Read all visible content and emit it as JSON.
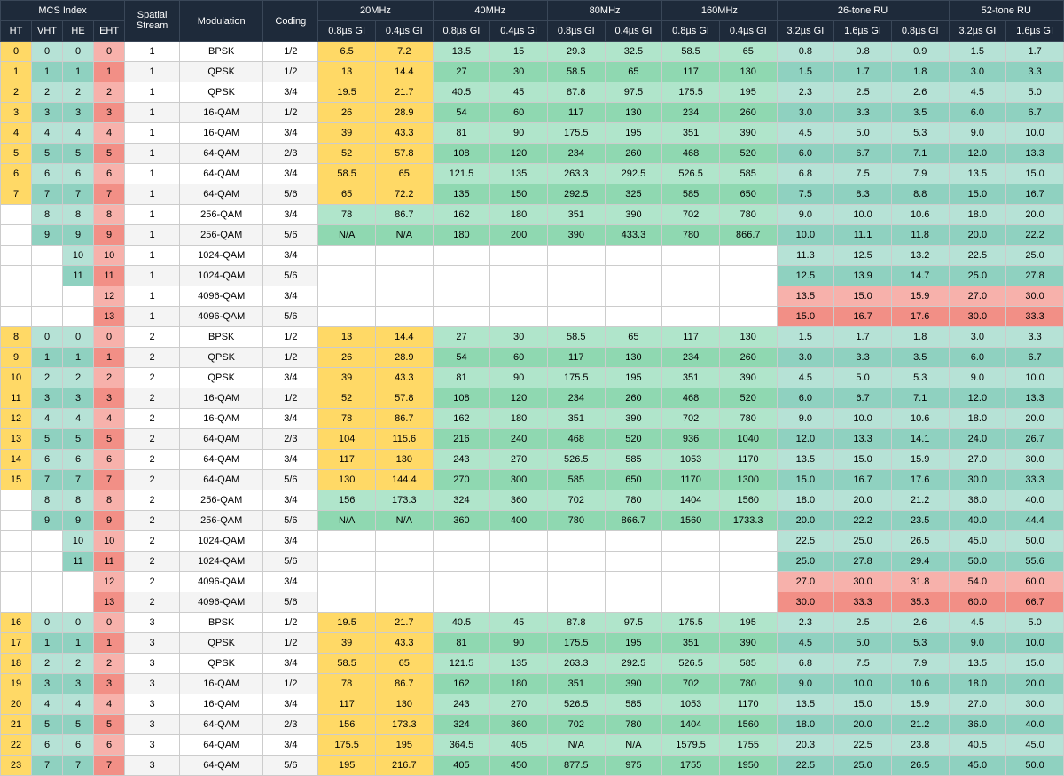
{
  "headers": {
    "group": [
      "MCS Index",
      "Spatial Stream",
      "Modulation",
      "Coding",
      "20MHz",
      "40MHz",
      "80MHz",
      "160MHz",
      "26-tone RU",
      "52-tone RU"
    ],
    "sub": [
      "HT",
      "VHT",
      "HE",
      "EHT",
      "0.8µs GI",
      "0.4µs GI",
      "0.8µs GI",
      "0.4µs GI",
      "0.8µs GI",
      "0.4µs GI",
      "0.8µs GI",
      "0.4µs GI",
      "3.2µs GI",
      "1.6µs GI",
      "0.8µs GI",
      "3.2µs GI",
      "1.6µs GI"
    ]
  },
  "gi_cols": 17,
  "blocks": [
    {
      "ss": 1,
      "rows": [
        {
          "ht": "0",
          "v": "0",
          "he": "0",
          "e": "0",
          "mod": "BPSK",
          "cod": "1/2",
          "r": [
            "6.5",
            "7.2",
            "13.5",
            "15",
            "29.3",
            "32.5",
            "58.5",
            "65",
            "0.8",
            "0.8",
            "0.9",
            "1.5",
            "1.7"
          ]
        },
        {
          "ht": "1",
          "v": "1",
          "he": "1",
          "e": "1",
          "mod": "QPSK",
          "cod": "1/2",
          "r": [
            "13",
            "14.4",
            "27",
            "30",
            "58.5",
            "65",
            "117",
            "130",
            "1.5",
            "1.7",
            "1.8",
            "3.0",
            "3.3"
          ]
        },
        {
          "ht": "2",
          "v": "2",
          "he": "2",
          "e": "2",
          "mod": "QPSK",
          "cod": "3/4",
          "r": [
            "19.5",
            "21.7",
            "40.5",
            "45",
            "87.8",
            "97.5",
            "175.5",
            "195",
            "2.3",
            "2.5",
            "2.6",
            "4.5",
            "5.0"
          ]
        },
        {
          "ht": "3",
          "v": "3",
          "he": "3",
          "e": "3",
          "mod": "16-QAM",
          "cod": "1/2",
          "r": [
            "26",
            "28.9",
            "54",
            "60",
            "117",
            "130",
            "234",
            "260",
            "3.0",
            "3.3",
            "3.5",
            "6.0",
            "6.7"
          ]
        },
        {
          "ht": "4",
          "v": "4",
          "he": "4",
          "e": "4",
          "mod": "16-QAM",
          "cod": "3/4",
          "r": [
            "39",
            "43.3",
            "81",
            "90",
            "175.5",
            "195",
            "351",
            "390",
            "4.5",
            "5.0",
            "5.3",
            "9.0",
            "10.0"
          ]
        },
        {
          "ht": "5",
          "v": "5",
          "he": "5",
          "e": "5",
          "mod": "64-QAM",
          "cod": "2/3",
          "r": [
            "52",
            "57.8",
            "108",
            "120",
            "234",
            "260",
            "468",
            "520",
            "6.0",
            "6.7",
            "7.1",
            "12.0",
            "13.3"
          ]
        },
        {
          "ht": "6",
          "v": "6",
          "he": "6",
          "e": "6",
          "mod": "64-QAM",
          "cod": "3/4",
          "r": [
            "58.5",
            "65",
            "121.5",
            "135",
            "263.3",
            "292.5",
            "526.5",
            "585",
            "6.8",
            "7.5",
            "7.9",
            "13.5",
            "15.0"
          ]
        },
        {
          "ht": "7",
          "v": "7",
          "he": "7",
          "e": "7",
          "mod": "64-QAM",
          "cod": "5/6",
          "r": [
            "65",
            "72.2",
            "135",
            "150",
            "292.5",
            "325",
            "585",
            "650",
            "7.5",
            "8.3",
            "8.8",
            "15.0",
            "16.7"
          ]
        },
        {
          "ht": "",
          "v": "8",
          "he": "8",
          "e": "8",
          "mod": "256-QAM",
          "cod": "3/4",
          "r": [
            "78",
            "86.7",
            "162",
            "180",
            "351",
            "390",
            "702",
            "780",
            "9.0",
            "10.0",
            "10.6",
            "18.0",
            "20.0"
          ]
        },
        {
          "ht": "",
          "v": "9",
          "he": "9",
          "e": "9",
          "mod": "256-QAM",
          "cod": "5/6",
          "r": [
            "N/A",
            "N/A",
            "180",
            "200",
            "390",
            "433.3",
            "780",
            "866.7",
            "10.0",
            "11.1",
            "11.8",
            "20.0",
            "22.2"
          ]
        },
        {
          "ht": "",
          "v": "",
          "he": "10",
          "e": "10",
          "mod": "1024-QAM",
          "cod": "3/4",
          "r": [
            "",
            "",
            "",
            "",
            "",
            "",
            "",
            "",
            "11.3",
            "12.5",
            "13.2",
            "22.5",
            "25.0"
          ]
        },
        {
          "ht": "",
          "v": "",
          "he": "11",
          "e": "11",
          "mod": "1024-QAM",
          "cod": "5/6",
          "r": [
            "",
            "",
            "",
            "",
            "",
            "",
            "",
            "",
            "12.5",
            "13.9",
            "14.7",
            "25.0",
            "27.8"
          ]
        },
        {
          "ht": "",
          "v": "",
          "he": "",
          "e": "12",
          "mod": "4096-QAM",
          "cod": "3/4",
          "r": [
            "",
            "",
            "",
            "",
            "",
            "",
            "",
            "",
            "13.5",
            "15.0",
            "15.9",
            "27.0",
            "30.0"
          ]
        },
        {
          "ht": "",
          "v": "",
          "he": "",
          "e": "13",
          "mod": "4096-QAM",
          "cod": "5/6",
          "r": [
            "",
            "",
            "",
            "",
            "",
            "",
            "",
            "",
            "15.0",
            "16.7",
            "17.6",
            "30.0",
            "33.3"
          ]
        }
      ]
    },
    {
      "ss": 2,
      "rows": [
        {
          "ht": "8",
          "v": "0",
          "he": "0",
          "e": "0",
          "mod": "BPSK",
          "cod": "1/2",
          "r": [
            "13",
            "14.4",
            "27",
            "30",
            "58.5",
            "65",
            "117",
            "130",
            "1.5",
            "1.7",
            "1.8",
            "3.0",
            "3.3"
          ]
        },
        {
          "ht": "9",
          "v": "1",
          "he": "1",
          "e": "1",
          "mod": "QPSK",
          "cod": "1/2",
          "r": [
            "26",
            "28.9",
            "54",
            "60",
            "117",
            "130",
            "234",
            "260",
            "3.0",
            "3.3",
            "3.5",
            "6.0",
            "6.7"
          ]
        },
        {
          "ht": "10",
          "v": "2",
          "he": "2",
          "e": "2",
          "mod": "QPSK",
          "cod": "3/4",
          "r": [
            "39",
            "43.3",
            "81",
            "90",
            "175.5",
            "195",
            "351",
            "390",
            "4.5",
            "5.0",
            "5.3",
            "9.0",
            "10.0"
          ]
        },
        {
          "ht": "11",
          "v": "3",
          "he": "3",
          "e": "3",
          "mod": "16-QAM",
          "cod": "1/2",
          "r": [
            "52",
            "57.8",
            "108",
            "120",
            "234",
            "260",
            "468",
            "520",
            "6.0",
            "6.7",
            "7.1",
            "12.0",
            "13.3"
          ]
        },
        {
          "ht": "12",
          "v": "4",
          "he": "4",
          "e": "4",
          "mod": "16-QAM",
          "cod": "3/4",
          "r": [
            "78",
            "86.7",
            "162",
            "180",
            "351",
            "390",
            "702",
            "780",
            "9.0",
            "10.0",
            "10.6",
            "18.0",
            "20.0"
          ]
        },
        {
          "ht": "13",
          "v": "5",
          "he": "5",
          "e": "5",
          "mod": "64-QAM",
          "cod": "2/3",
          "r": [
            "104",
            "115.6",
            "216",
            "240",
            "468",
            "520",
            "936",
            "1040",
            "12.0",
            "13.3",
            "14.1",
            "24.0",
            "26.7"
          ]
        },
        {
          "ht": "14",
          "v": "6",
          "he": "6",
          "e": "6",
          "mod": "64-QAM",
          "cod": "3/4",
          "r": [
            "117",
            "130",
            "243",
            "270",
            "526.5",
            "585",
            "1053",
            "1170",
            "13.5",
            "15.0",
            "15.9",
            "27.0",
            "30.0"
          ]
        },
        {
          "ht": "15",
          "v": "7",
          "he": "7",
          "e": "7",
          "mod": "64-QAM",
          "cod": "5/6",
          "r": [
            "130",
            "144.4",
            "270",
            "300",
            "585",
            "650",
            "1170",
            "1300",
            "15.0",
            "16.7",
            "17.6",
            "30.0",
            "33.3"
          ]
        },
        {
          "ht": "",
          "v": "8",
          "he": "8",
          "e": "8",
          "mod": "256-QAM",
          "cod": "3/4",
          "r": [
            "156",
            "173.3",
            "324",
            "360",
            "702",
            "780",
            "1404",
            "1560",
            "18.0",
            "20.0",
            "21.2",
            "36.0",
            "40.0"
          ]
        },
        {
          "ht": "",
          "v": "9",
          "he": "9",
          "e": "9",
          "mod": "256-QAM",
          "cod": "5/6",
          "r": [
            "N/A",
            "N/A",
            "360",
            "400",
            "780",
            "866.7",
            "1560",
            "1733.3",
            "20.0",
            "22.2",
            "23.5",
            "40.0",
            "44.4"
          ]
        },
        {
          "ht": "",
          "v": "",
          "he": "10",
          "e": "10",
          "mod": "1024-QAM",
          "cod": "3/4",
          "r": [
            "",
            "",
            "",
            "",
            "",
            "",
            "",
            "",
            "22.5",
            "25.0",
            "26.5",
            "45.0",
            "50.0"
          ]
        },
        {
          "ht": "",
          "v": "",
          "he": "11",
          "e": "11",
          "mod": "1024-QAM",
          "cod": "5/6",
          "r": [
            "",
            "",
            "",
            "",
            "",
            "",
            "",
            "",
            "25.0",
            "27.8",
            "29.4",
            "50.0",
            "55.6"
          ]
        },
        {
          "ht": "",
          "v": "",
          "he": "",
          "e": "12",
          "mod": "4096-QAM",
          "cod": "3/4",
          "r": [
            "",
            "",
            "",
            "",
            "",
            "",
            "",
            "",
            "27.0",
            "30.0",
            "31.8",
            "54.0",
            "60.0"
          ]
        },
        {
          "ht": "",
          "v": "",
          "he": "",
          "e": "13",
          "mod": "4096-QAM",
          "cod": "5/6",
          "r": [
            "",
            "",
            "",
            "",
            "",
            "",
            "",
            "",
            "30.0",
            "33.3",
            "35.3",
            "60.0",
            "66.7"
          ]
        }
      ]
    },
    {
      "ss": 3,
      "rows": [
        {
          "ht": "16",
          "v": "0",
          "he": "0",
          "e": "0",
          "mod": "BPSK",
          "cod": "1/2",
          "r": [
            "19.5",
            "21.7",
            "40.5",
            "45",
            "87.8",
            "97.5",
            "175.5",
            "195",
            "2.3",
            "2.5",
            "2.6",
            "4.5",
            "5.0"
          ]
        },
        {
          "ht": "17",
          "v": "1",
          "he": "1",
          "e": "1",
          "mod": "QPSK",
          "cod": "1/2",
          "r": [
            "39",
            "43.3",
            "81",
            "90",
            "175.5",
            "195",
            "351",
            "390",
            "4.5",
            "5.0",
            "5.3",
            "9.0",
            "10.0"
          ]
        },
        {
          "ht": "18",
          "v": "2",
          "he": "2",
          "e": "2",
          "mod": "QPSK",
          "cod": "3/4",
          "r": [
            "58.5",
            "65",
            "121.5",
            "135",
            "263.3",
            "292.5",
            "526.5",
            "585",
            "6.8",
            "7.5",
            "7.9",
            "13.5",
            "15.0"
          ]
        },
        {
          "ht": "19",
          "v": "3",
          "he": "3",
          "e": "3",
          "mod": "16-QAM",
          "cod": "1/2",
          "r": [
            "78",
            "86.7",
            "162",
            "180",
            "351",
            "390",
            "702",
            "780",
            "9.0",
            "10.0",
            "10.6",
            "18.0",
            "20.0"
          ]
        },
        {
          "ht": "20",
          "v": "4",
          "he": "4",
          "e": "4",
          "mod": "16-QAM",
          "cod": "3/4",
          "r": [
            "117",
            "130",
            "243",
            "270",
            "526.5",
            "585",
            "1053",
            "1170",
            "13.5",
            "15.0",
            "15.9",
            "27.0",
            "30.0"
          ]
        },
        {
          "ht": "21",
          "v": "5",
          "he": "5",
          "e": "5",
          "mod": "64-QAM",
          "cod": "2/3",
          "r": [
            "156",
            "173.3",
            "324",
            "360",
            "702",
            "780",
            "1404",
            "1560",
            "18.0",
            "20.0",
            "21.2",
            "36.0",
            "40.0"
          ]
        },
        {
          "ht": "22",
          "v": "6",
          "he": "6",
          "e": "6",
          "mod": "64-QAM",
          "cod": "3/4",
          "r": [
            "175.5",
            "195",
            "364.5",
            "405",
            "N/A",
            "N/A",
            "1579.5",
            "1755",
            "20.3",
            "22.5",
            "23.8",
            "40.5",
            "45.0"
          ]
        },
        {
          "ht": "23",
          "v": "7",
          "he": "7",
          "e": "7",
          "mod": "64-QAM",
          "cod": "5/6",
          "r": [
            "195",
            "216.7",
            "405",
            "450",
            "877.5",
            "975",
            "1755",
            "1950",
            "22.5",
            "25.0",
            "26.5",
            "45.0",
            "50.0"
          ]
        }
      ]
    }
  ]
}
